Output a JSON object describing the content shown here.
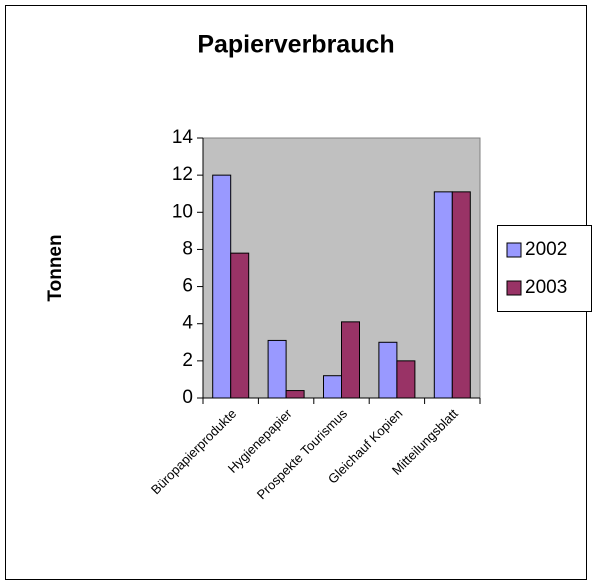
{
  "chart_data": {
    "type": "bar",
    "title": "Papierverbrauch",
    "y_label": "Tonnen",
    "categories": [
      "Büropapierprodukte",
      "Hygienepapier",
      "Prospekte Tourismus",
      "Gleichauf Kopien",
      "Mitteilungsblatt"
    ],
    "series": [
      {
        "name": "2002",
        "color": "#9999ff",
        "values": [
          12,
          3.1,
          1.2,
          3.0,
          11.1
        ]
      },
      {
        "name": "2003",
        "color": "#993366",
        "values": [
          7.8,
          0.4,
          4.1,
          2.0,
          11.1
        ]
      }
    ],
    "ylim": [
      0,
      14
    ],
    "yticks": [
      0,
      2,
      4,
      6,
      8,
      10,
      12,
      14
    ],
    "legend": "right",
    "plot_background": "#c0c0c0"
  }
}
